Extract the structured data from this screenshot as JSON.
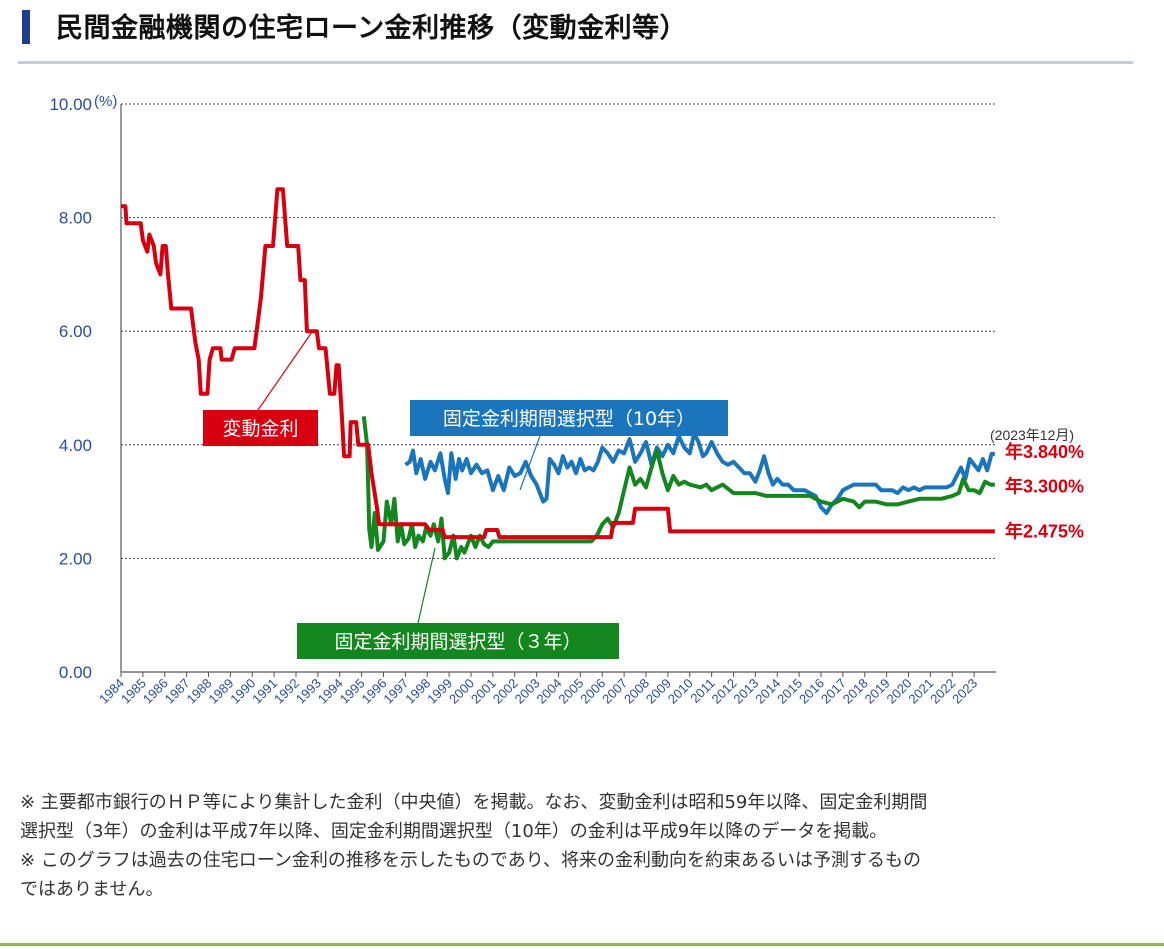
{
  "page": {
    "title": "民間金融機関の住宅ローン金利推移（変動金利等）",
    "notes": [
      "※ 主要都市銀行のＨＰ等により集計した金利（中央値）を掲載。なお、変動金利は昭和59年以降、固定金利期間",
      "選択型（3年）の金利は平成7年以降、固定金利期間選択型（10年）の金利は平成9年以降のデータを掲載。",
      "※ このグラフは過去の住宅ローン金利の推移を示したものであり、将来の金利動向を約束あるいは予測するもの",
      "ではありません。"
    ]
  },
  "colors": {
    "title_accent": "#1d3e8c",
    "variable": "#d7000f",
    "fixed10": "#1b75bc",
    "fixed3": "#13861d",
    "axis_text": "#2a4e9b"
  },
  "chart_data": {
    "type": "line",
    "ylim": [
      0,
      10
    ],
    "xlim": [
      1984,
      2024
    ],
    "grid": "horizontal-dotted",
    "y_ticks": [
      "0.00",
      "2.00",
      "4.00",
      "6.00",
      "8.00",
      "10.00"
    ],
    "y_unit": "(%)",
    "x_ticks": [
      "1984",
      "1985",
      "1986",
      "1987",
      "1988",
      "1989",
      "1990",
      "1991",
      "1992",
      "1993",
      "1994",
      "1995",
      "1996",
      "1997",
      "1998",
      "1999",
      "2000",
      "2001",
      "2002",
      "2003",
      "2004",
      "2005",
      "2006",
      "2007",
      "2008",
      "2009",
      "2010",
      "2011",
      "2012",
      "2013",
      "2014",
      "2015",
      "2016",
      "2017",
      "2018",
      "2019",
      "2020",
      "2021",
      "2022",
      "2023"
    ],
    "date_label": "(2023年12月)",
    "series": [
      {
        "name": "変動金利",
        "color": "#d7000f",
        "end_label": "年2.475%",
        "points": [
          [
            1984,
            8.2
          ],
          [
            1984.2,
            8.2
          ],
          [
            1984.25,
            7.9
          ],
          [
            1984.9,
            7.9
          ],
          [
            1985,
            7.6
          ],
          [
            1985.2,
            7.4
          ],
          [
            1985.3,
            7.7
          ],
          [
            1985.5,
            7.5
          ],
          [
            1985.6,
            7.2
          ],
          [
            1985.8,
            7.0
          ],
          [
            1985.9,
            7.5
          ],
          [
            1986.05,
            7.5
          ],
          [
            1986.15,
            7.0
          ],
          [
            1986.3,
            6.4
          ],
          [
            1987.2,
            6.4
          ],
          [
            1987.4,
            5.8
          ],
          [
            1987.55,
            5.5
          ],
          [
            1987.65,
            4.9
          ],
          [
            1987.95,
            4.9
          ],
          [
            1988.05,
            5.5
          ],
          [
            1988.2,
            5.7
          ],
          [
            1988.55,
            5.7
          ],
          [
            1988.6,
            5.5
          ],
          [
            1989.05,
            5.5
          ],
          [
            1989.2,
            5.7
          ],
          [
            1990.1,
            5.7
          ],
          [
            1990.2,
            6.0
          ],
          [
            1990.4,
            6.6
          ],
          [
            1990.6,
            7.5
          ],
          [
            1990.95,
            7.5
          ],
          [
            1991.15,
            8.5
          ],
          [
            1991.4,
            8.5
          ],
          [
            1991.6,
            7.5
          ],
          [
            1992.1,
            7.5
          ],
          [
            1992.2,
            6.9
          ],
          [
            1992.4,
            6.9
          ],
          [
            1992.5,
            6.0
          ],
          [
            1992.95,
            6.0
          ],
          [
            1993.05,
            5.7
          ],
          [
            1993.35,
            5.7
          ],
          [
            1993.55,
            4.9
          ],
          [
            1993.75,
            4.9
          ],
          [
            1993.85,
            5.4
          ],
          [
            1993.95,
            5.4
          ],
          [
            1994.1,
            4.5
          ],
          [
            1994.2,
            3.8
          ],
          [
            1994.45,
            3.8
          ],
          [
            1994.5,
            4.4
          ],
          [
            1994.75,
            4.4
          ],
          [
            1994.85,
            4.0
          ],
          [
            1995.3,
            4.0
          ],
          [
            1995.45,
            3.5
          ],
          [
            1995.7,
            2.9
          ],
          [
            1995.8,
            2.6
          ],
          [
            1997.9,
            2.6
          ],
          [
            1998.1,
            2.5
          ],
          [
            1998.7,
            2.5
          ],
          [
            1998.8,
            2.375
          ],
          [
            2000.6,
            2.375
          ],
          [
            2000.7,
            2.5
          ],
          [
            2001.2,
            2.5
          ],
          [
            2001.3,
            2.375
          ],
          [
            2006.4,
            2.375
          ],
          [
            2006.5,
            2.625
          ],
          [
            2007.4,
            2.625
          ],
          [
            2007.5,
            2.875
          ],
          [
            2009.0,
            2.875
          ],
          [
            2009.1,
            2.475
          ],
          [
            2023.95,
            2.475
          ]
        ]
      },
      {
        "name": "固定金利期間選択型（10年）",
        "color": "#1b75bc",
        "end_label": "年3.840%",
        "points": [
          [
            1997,
            3.65
          ],
          [
            1997.2,
            3.7
          ],
          [
            1997.35,
            3.9
          ],
          [
            1997.5,
            3.5
          ],
          [
            1997.7,
            3.75
          ],
          [
            1997.9,
            3.4
          ],
          [
            1998.15,
            3.7
          ],
          [
            1998.35,
            3.55
          ],
          [
            1998.6,
            3.85
          ],
          [
            1998.8,
            3.4
          ],
          [
            1998.95,
            3.15
          ],
          [
            1999.1,
            3.85
          ],
          [
            1999.3,
            3.4
          ],
          [
            1999.45,
            3.75
          ],
          [
            1999.6,
            3.55
          ],
          [
            1999.8,
            3.75
          ],
          [
            2000,
            3.5
          ],
          [
            2000.25,
            3.65
          ],
          [
            2000.5,
            3.5
          ],
          [
            2000.75,
            3.55
          ],
          [
            2001,
            3.2
          ],
          [
            2001.25,
            3.45
          ],
          [
            2001.5,
            3.2
          ],
          [
            2001.75,
            3.6
          ],
          [
            2002,
            3.45
          ],
          [
            2002.25,
            3.5
          ],
          [
            2002.5,
            3.7
          ],
          [
            2002.75,
            3.45
          ],
          [
            2003,
            3.3
          ],
          [
            2003.3,
            3.0
          ],
          [
            2003.45,
            3.05
          ],
          [
            2003.6,
            3.75
          ],
          [
            2003.8,
            3.65
          ],
          [
            2004,
            3.5
          ],
          [
            2004.2,
            3.8
          ],
          [
            2004.4,
            3.6
          ],
          [
            2004.6,
            3.7
          ],
          [
            2004.8,
            3.5
          ],
          [
            2005,
            3.75
          ],
          [
            2005.2,
            3.55
          ],
          [
            2005.4,
            3.6
          ],
          [
            2005.6,
            3.55
          ],
          [
            2005.8,
            3.7
          ],
          [
            2006,
            3.95
          ],
          [
            2006.25,
            3.85
          ],
          [
            2006.5,
            3.7
          ],
          [
            2006.75,
            3.9
          ],
          [
            2007,
            3.85
          ],
          [
            2007.25,
            4.1
          ],
          [
            2007.5,
            3.7
          ],
          [
            2007.75,
            3.85
          ],
          [
            2008,
            4.05
          ],
          [
            2008.25,
            3.65
          ],
          [
            2008.5,
            3.95
          ],
          [
            2008.75,
            3.8
          ],
          [
            2009,
            4.0
          ],
          [
            2009.25,
            3.85
          ],
          [
            2009.5,
            4.15
          ],
          [
            2009.75,
            3.95
          ],
          [
            2010,
            3.85
          ],
          [
            2010.2,
            4.2
          ],
          [
            2010.4,
            4.05
          ],
          [
            2010.6,
            3.8
          ],
          [
            2010.75,
            3.85
          ],
          [
            2011,
            4.05
          ],
          [
            2011.25,
            3.85
          ],
          [
            2011.5,
            3.7
          ],
          [
            2011.75,
            3.65
          ],
          [
            2012,
            3.7
          ],
          [
            2012.25,
            3.6
          ],
          [
            2012.5,
            3.5
          ],
          [
            2012.75,
            3.5
          ],
          [
            2013,
            3.35
          ],
          [
            2013.2,
            3.55
          ],
          [
            2013.4,
            3.8
          ],
          [
            2013.6,
            3.5
          ],
          [
            2013.8,
            3.3
          ],
          [
            2014,
            3.4
          ],
          [
            2014.25,
            3.3
          ],
          [
            2014.5,
            3.3
          ],
          [
            2014.75,
            3.2
          ],
          [
            2015,
            3.2
          ],
          [
            2015.25,
            3.2
          ],
          [
            2015.5,
            3.15
          ],
          [
            2015.75,
            3.1
          ],
          [
            2016,
            2.9
          ],
          [
            2016.25,
            2.8
          ],
          [
            2016.5,
            2.95
          ],
          [
            2016.75,
            3.05
          ],
          [
            2017,
            3.2
          ],
          [
            2017.25,
            3.25
          ],
          [
            2017.5,
            3.3
          ],
          [
            2017.75,
            3.3
          ],
          [
            2018,
            3.3
          ],
          [
            2018.25,
            3.3
          ],
          [
            2018.5,
            3.3
          ],
          [
            2018.75,
            3.2
          ],
          [
            2019,
            3.2
          ],
          [
            2019.25,
            3.2
          ],
          [
            2019.5,
            3.15
          ],
          [
            2019.75,
            3.25
          ],
          [
            2020,
            3.2
          ],
          [
            2020.25,
            3.25
          ],
          [
            2020.5,
            3.2
          ],
          [
            2020.75,
            3.25
          ],
          [
            2021,
            3.25
          ],
          [
            2021.25,
            3.25
          ],
          [
            2021.5,
            3.25
          ],
          [
            2021.75,
            3.25
          ],
          [
            2022,
            3.3
          ],
          [
            2022.2,
            3.45
          ],
          [
            2022.4,
            3.6
          ],
          [
            2022.6,
            3.4
          ],
          [
            2022.8,
            3.75
          ],
          [
            2023,
            3.65
          ],
          [
            2023.2,
            3.55
          ],
          [
            2023.4,
            3.75
          ],
          [
            2023.6,
            3.55
          ],
          [
            2023.8,
            3.84
          ],
          [
            2023.95,
            3.84
          ]
        ]
      },
      {
        "name": "固定金利期間選択型（３年）",
        "color": "#13861d",
        "end_label": "年3.300%",
        "points": [
          [
            1995.1,
            4.5
          ],
          [
            1995.25,
            4.0
          ],
          [
            1995.35,
            2.5
          ],
          [
            1995.45,
            2.2
          ],
          [
            1995.6,
            2.8
          ],
          [
            1995.75,
            2.15
          ],
          [
            1996,
            2.3
          ],
          [
            1996.15,
            3.0
          ],
          [
            1996.35,
            2.6
          ],
          [
            1996.5,
            3.05
          ],
          [
            1996.65,
            2.3
          ],
          [
            1996.8,
            2.6
          ],
          [
            1996.95,
            2.25
          ],
          [
            1997.15,
            2.35
          ],
          [
            1997.3,
            2.6
          ],
          [
            1997.45,
            2.2
          ],
          [
            1997.6,
            2.4
          ],
          [
            1997.8,
            2.3
          ],
          [
            1997.95,
            2.55
          ],
          [
            1998.15,
            2.4
          ],
          [
            1998.3,
            2.6
          ],
          [
            1998.5,
            2.3
          ],
          [
            1998.65,
            2.7
          ],
          [
            1998.8,
            2.0
          ],
          [
            1999,
            2.1
          ],
          [
            1999.2,
            2.4
          ],
          [
            1999.35,
            2.0
          ],
          [
            1999.55,
            2.2
          ],
          [
            1999.7,
            2.1
          ],
          [
            1999.85,
            2.25
          ],
          [
            2000,
            2.4
          ],
          [
            2000.2,
            2.2
          ],
          [
            2000.4,
            2.4
          ],
          [
            2000.6,
            2.25
          ],
          [
            2000.8,
            2.2
          ],
          [
            2001,
            2.3
          ],
          [
            2001.5,
            2.3
          ],
          [
            2002,
            2.3
          ],
          [
            2003,
            2.3
          ],
          [
            2004,
            2.3
          ],
          [
            2005,
            2.3
          ],
          [
            2005.5,
            2.3
          ],
          [
            2005.75,
            2.4
          ],
          [
            2006,
            2.6
          ],
          [
            2006.25,
            2.7
          ],
          [
            2006.5,
            2.55
          ],
          [
            2006.75,
            2.8
          ],
          [
            2007,
            3.2
          ],
          [
            2007.25,
            3.6
          ],
          [
            2007.5,
            3.3
          ],
          [
            2007.75,
            3.4
          ],
          [
            2008,
            3.25
          ],
          [
            2008.25,
            3.6
          ],
          [
            2008.5,
            3.9
          ],
          [
            2008.75,
            3.5
          ],
          [
            2009,
            3.2
          ],
          [
            2009.25,
            3.45
          ],
          [
            2009.5,
            3.3
          ],
          [
            2009.75,
            3.35
          ],
          [
            2010,
            3.3
          ],
          [
            2010.5,
            3.25
          ],
          [
            2010.75,
            3.3
          ],
          [
            2011,
            3.2
          ],
          [
            2011.5,
            3.3
          ],
          [
            2012,
            3.15
          ],
          [
            2012.5,
            3.15
          ],
          [
            2013,
            3.15
          ],
          [
            2013.5,
            3.1
          ],
          [
            2014,
            3.1
          ],
          [
            2015,
            3.1
          ],
          [
            2015.5,
            3.1
          ],
          [
            2016,
            3.0
          ],
          [
            2016.5,
            2.95
          ],
          [
            2016.75,
            3.0
          ],
          [
            2017,
            3.05
          ],
          [
            2017.5,
            3.0
          ],
          [
            2017.75,
            2.9
          ],
          [
            2018,
            3.0
          ],
          [
            2018.5,
            3.0
          ],
          [
            2019,
            2.95
          ],
          [
            2019.5,
            2.95
          ],
          [
            2020,
            3.0
          ],
          [
            2020.5,
            3.05
          ],
          [
            2021,
            3.05
          ],
          [
            2021.5,
            3.05
          ],
          [
            2022,
            3.1
          ],
          [
            2022.3,
            3.15
          ],
          [
            2022.5,
            3.4
          ],
          [
            2022.75,
            3.2
          ],
          [
            2023,
            3.2
          ],
          [
            2023.25,
            3.15
          ],
          [
            2023.5,
            3.35
          ],
          [
            2023.75,
            3.3
          ],
          [
            2023.95,
            3.3
          ]
        ]
      }
    ]
  }
}
